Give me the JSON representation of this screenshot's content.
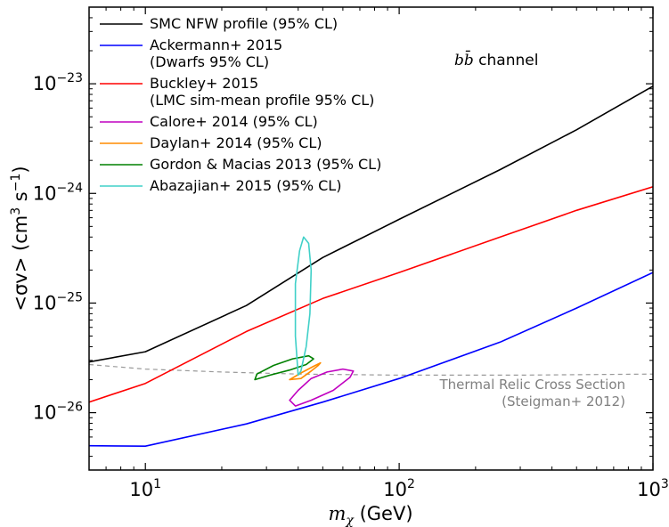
{
  "chart_data": {
    "type": "line",
    "xscale": "log",
    "yscale": "log",
    "xlim": [
      6,
      1000
    ],
    "ylim": [
      3e-27,
      5e-23
    ],
    "grid": false,
    "legend_position": "top-left",
    "xlabel": {
      "main": "m",
      "sub": "χ",
      "unit": " (GeV)"
    },
    "ylabel": {
      "pre": "<σv> (cm",
      "sup1": "3",
      "mid": " s",
      "sup2": "−1",
      "post": ")"
    },
    "annotation": {
      "math": "bb̄",
      "text": " channel"
    },
    "x_ticks": [
      {
        "base": "10",
        "exp": "1",
        "value": 10
      },
      {
        "base": "10",
        "exp": "2",
        "value": 100
      },
      {
        "base": "10",
        "exp": "3",
        "value": 1000
      }
    ],
    "y_ticks": [
      {
        "base": "10",
        "exp": "−26",
        "value": 1e-26
      },
      {
        "base": "10",
        "exp": "−25",
        "value": 1e-25
      },
      {
        "base": "10",
        "exp": "−24",
        "value": 1e-24
      },
      {
        "base": "10",
        "exp": "−23",
        "value": 1e-23
      }
    ],
    "series": [
      {
        "name": "SMC NFW profile (95% CL)",
        "color": "#000000",
        "kind": "line",
        "points": [
          [
            6,
            2.9e-26
          ],
          [
            10,
            3.6e-26
          ],
          [
            25,
            9.5e-26
          ],
          [
            50,
            2.6e-25
          ],
          [
            100,
            5.8e-25
          ],
          [
            250,
            1.65e-24
          ],
          [
            500,
            3.8e-24
          ],
          [
            1000,
            9.5e-24
          ]
        ]
      },
      {
        "name": "Ackermann+ 2015",
        "name2": "(Dwarfs 95% CL)",
        "color": "#0000ff",
        "kind": "line",
        "points": [
          [
            6,
            5e-27
          ],
          [
            10,
            4.95e-27
          ],
          [
            25,
            7.9e-27
          ],
          [
            50,
            1.25e-26
          ],
          [
            100,
            2.05e-26
          ],
          [
            250,
            4.4e-26
          ],
          [
            500,
            9e-26
          ],
          [
            1000,
            1.9e-25
          ]
        ]
      },
      {
        "name": "Buckley+ 2015",
        "name2": "(LMC sim-mean profile 95% CL)",
        "color": "#ff0000",
        "kind": "line",
        "points": [
          [
            6,
            1.25e-26
          ],
          [
            10,
            1.85e-26
          ],
          [
            25,
            5.5e-26
          ],
          [
            50,
            1.1e-25
          ],
          [
            100,
            1.9e-25
          ],
          [
            250,
            4e-25
          ],
          [
            500,
            7e-25
          ],
          [
            1000,
            1.15e-24
          ]
        ]
      },
      {
        "name": "Calore+ 2014 (95% CL)",
        "color": "#c000c0",
        "kind": "contour",
        "points": [
          [
            39,
            1.15e-26
          ],
          [
            45,
            1.3e-26
          ],
          [
            55,
            1.6e-26
          ],
          [
            64,
            2.1e-26
          ],
          [
            66,
            2.4e-26
          ],
          [
            60,
            2.5e-26
          ],
          [
            52,
            2.35e-26
          ],
          [
            45,
            2.05e-26
          ],
          [
            40,
            1.6e-26
          ],
          [
            37,
            1.3e-26
          ],
          [
            39,
            1.15e-26
          ]
        ]
      },
      {
        "name": "Daylan+ 2014 (95% CL)",
        "color": "#ff8c00",
        "kind": "contour",
        "points": [
          [
            37,
            2e-26
          ],
          [
            41,
            2.3e-26
          ],
          [
            46,
            2.65e-26
          ],
          [
            49,
            2.85e-26
          ],
          [
            48,
            2.7e-26
          ],
          [
            45,
            2.4e-26
          ],
          [
            41,
            2.05e-26
          ],
          [
            37,
            2e-26
          ]
        ]
      },
      {
        "name": "Gordon & Macias 2013 (95% CL)",
        "color": "#008000",
        "kind": "contour",
        "points": [
          [
            27,
            2e-26
          ],
          [
            31,
            2.2e-26
          ],
          [
            37,
            2.45e-26
          ],
          [
            43,
            2.75e-26
          ],
          [
            46,
            3.1e-26
          ],
          [
            44,
            3.3e-26
          ],
          [
            38,
            3.1e-26
          ],
          [
            32,
            2.7e-26
          ],
          [
            27.5,
            2.25e-26
          ],
          [
            27,
            2e-26
          ]
        ]
      },
      {
        "name": "Abazajian+ 2015 (95% CL)",
        "color": "#40d0c8",
        "kind": "contour",
        "points": [
          [
            40,
            2.2e-26
          ],
          [
            39,
            5e-26
          ],
          [
            39,
            1.5e-25
          ],
          [
            40.5,
            3e-25
          ],
          [
            42,
            4e-25
          ],
          [
            44,
            3.5e-25
          ],
          [
            45,
            2e-25
          ],
          [
            44.5,
            8e-26
          ],
          [
            43,
            4e-26
          ],
          [
            41,
            2.4e-26
          ],
          [
            40,
            2.2e-26
          ]
        ]
      },
      {
        "name": "Thermal Relic Cross Section",
        "name2": "(Steigman+ 2012)",
        "color": "#999999",
        "kind": "dashed",
        "points": [
          [
            6,
            2.75e-26
          ],
          [
            10,
            2.5e-26
          ],
          [
            20,
            2.35e-26
          ],
          [
            40,
            2.25e-26
          ],
          [
            100,
            2.2e-26
          ],
          [
            300,
            2.2e-26
          ],
          [
            1000,
            2.25e-26
          ]
        ]
      }
    ]
  }
}
